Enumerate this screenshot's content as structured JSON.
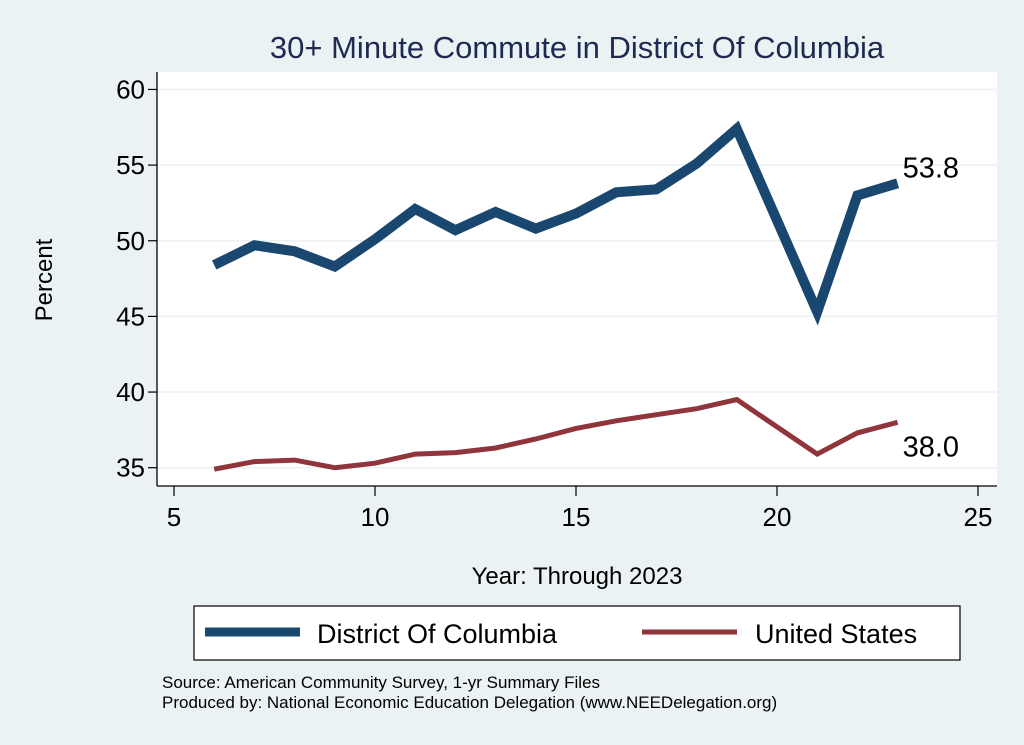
{
  "chart_data": {
    "type": "line",
    "title": "30+ Minute Commute in District Of Columbia",
    "xlabel": "Year: Through 2023",
    "ylabel": "Percent",
    "xlim": [
      5,
      25
    ],
    "ylim": [
      34,
      61
    ],
    "xticks": [
      5,
      10,
      15,
      20,
      25
    ],
    "xtick_labels": [
      "5",
      "10",
      "15",
      "20",
      "25"
    ],
    "yticks": [
      35,
      40,
      45,
      50,
      55,
      60
    ],
    "ytick_labels": [
      "35",
      "40",
      "45",
      "50",
      "55",
      "60"
    ],
    "grid": true,
    "legend_position": "bottom",
    "series": [
      {
        "name": "District Of Columbia",
        "color": "#1a476f",
        "x": [
          6,
          7,
          8,
          9,
          10,
          11,
          12,
          13,
          14,
          15,
          16,
          17,
          18,
          19,
          21,
          22,
          23
        ],
        "values": [
          48.4,
          49.7,
          49.3,
          48.3,
          50.1,
          52.1,
          50.7,
          51.9,
          50.8,
          51.8,
          53.2,
          53.4,
          55.1,
          57.4,
          45.3,
          53.0,
          53.8
        ],
        "end_label": "53.8"
      },
      {
        "name": "United States",
        "color": "#90353b",
        "x": [
          6,
          7,
          8,
          9,
          10,
          11,
          12,
          13,
          14,
          15,
          16,
          17,
          18,
          19,
          21,
          22,
          23
        ],
        "values": [
          34.9,
          35.4,
          35.5,
          35.0,
          35.3,
          35.9,
          36.0,
          36.3,
          36.9,
          37.6,
          38.1,
          38.5,
          38.9,
          39.5,
          35.9,
          37.3,
          38.0
        ],
        "end_label": "38.0"
      }
    ],
    "notes": [
      "Source: American Community Survey, 1-yr Summary Files",
      "Produced by: National Economic Education Delegation (www.NEEDelegation.org)"
    ]
  }
}
